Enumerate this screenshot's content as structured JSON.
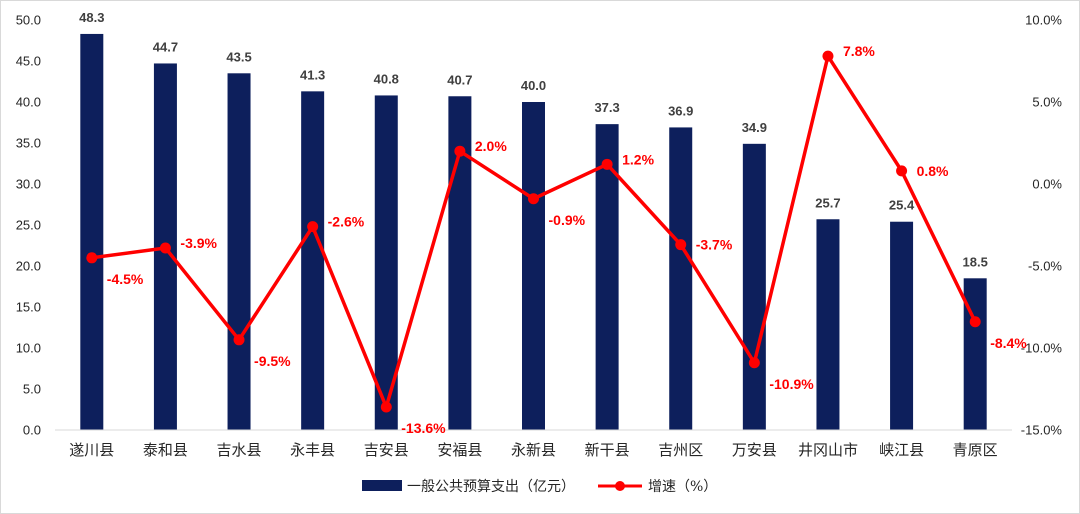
{
  "chart_data": {
    "type": "bar",
    "categories": [
      "遂川县",
      "泰和县",
      "吉水县",
      "永丰县",
      "吉安县",
      "安福县",
      "永新县",
      "新干县",
      "吉州区",
      "万安县",
      "井冈山市",
      "峡江县",
      "青原区"
    ],
    "series": [
      {
        "name": "一般公共预算支出（亿元）",
        "type": "bar",
        "axis": "left",
        "color": "#0d1f5c",
        "values": [
          48.3,
          44.7,
          43.5,
          41.3,
          40.8,
          40.7,
          40.0,
          37.3,
          36.9,
          34.9,
          25.7,
          25.4,
          18.5
        ],
        "labels": [
          "48.3",
          "44.7",
          "43.5",
          "41.3",
          "40.8",
          "40.7",
          "40.0",
          "37.3",
          "36.9",
          "34.9",
          "25.7",
          "25.4",
          "18.5"
        ]
      },
      {
        "name": "增速（%）",
        "type": "line",
        "axis": "right",
        "color": "#ff0000",
        "values": [
          -4.5,
          -3.9,
          -9.5,
          -2.6,
          -13.6,
          2.0,
          -0.9,
          1.2,
          -3.7,
          -10.9,
          7.8,
          0.8,
          -8.4
        ],
        "labels": [
          "-4.5%",
          "-3.9%",
          "-9.5%",
          "-2.6%",
          "-13.6%",
          "2.0%",
          "-0.9%",
          "1.2%",
          "-3.7%",
          "-10.9%",
          "7.8%",
          "0.8%",
          "-8.4%"
        ]
      }
    ],
    "y_left": {
      "range": [
        0,
        50
      ],
      "ticks": [
        0,
        5,
        10,
        15,
        20,
        25,
        30,
        35,
        40,
        45,
        50
      ],
      "tick_labels": [
        "0.0",
        "5.0",
        "10.0",
        "15.0",
        "20.0",
        "25.0",
        "30.0",
        "35.0",
        "40.0",
        "45.0",
        "50.0"
      ]
    },
    "y_right": {
      "range": [
        -15,
        10
      ],
      "ticks": [
        -15,
        -10,
        -5,
        0,
        5,
        10
      ],
      "tick_labels": [
        "-15.0%",
        "-10.0%",
        "-5.0%",
        "0.0%",
        "5.0%",
        "10.0%"
      ]
    },
    "grid": false,
    "legend_position": "bottom"
  }
}
